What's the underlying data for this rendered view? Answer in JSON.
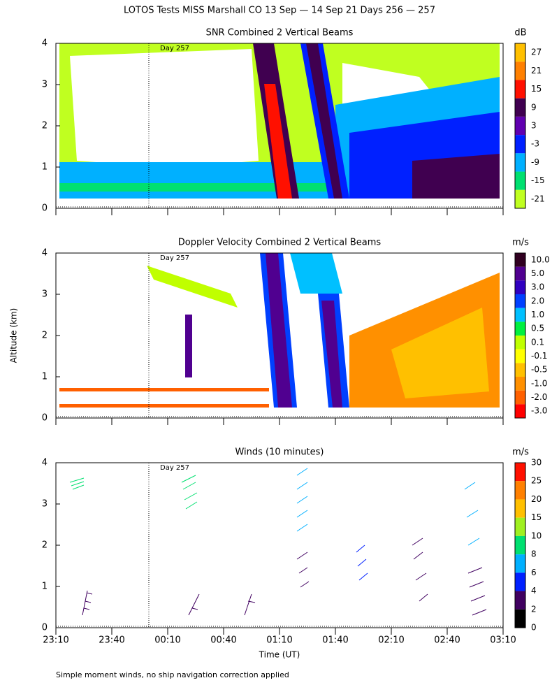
{
  "title": "LOTOS Tests MISS Marshall CO  13 Sep — 14 Sep 21 Days 256 — 257",
  "y_axis_label": "Altitude (km)",
  "x_axis_label": "Time (UT)",
  "x_ticks": [
    "23:10",
    "23:40",
    "00:10",
    "00:40",
    "01:10",
    "01:40",
    "02:10",
    "02:40",
    "03:10"
  ],
  "footnote": "Simple moment winds, no ship navigation correction applied",
  "chart_data": [
    {
      "type": "heatmap",
      "title": "SNR Combined 2 Vertical Beams",
      "annotation": "Day 257",
      "ylim": [
        0,
        4
      ],
      "yticks": [
        0,
        1,
        2,
        3,
        4
      ],
      "colorbar": {
        "label": "dB",
        "ticks": [
          27,
          21,
          15,
          9,
          3,
          -3,
          -9,
          -15,
          -21
        ],
        "colors": [
          "#ffc000",
          "#ff8000",
          "#ff1000",
          "#400050",
          "#6000b0",
          "#0020ff",
          "#00b0ff",
          "#00e070",
          "#c0ff20"
        ]
      }
    },
    {
      "type": "heatmap",
      "title": "Doppler Velocity Combined 2 Vertical Beams",
      "annotation": "Day 257",
      "ylim": [
        0,
        4
      ],
      "yticks": [
        0,
        1,
        2,
        3,
        4
      ],
      "colorbar": {
        "label": "m/s",
        "ticks": [
          {
            "value": 10,
            "label": "10.0"
          },
          {
            "value": 5,
            "label": "5.0"
          },
          {
            "value": 3,
            "label": "3.0"
          },
          {
            "value": 2,
            "label": "2.0"
          },
          {
            "value": 1,
            "label": "1.0"
          },
          0.5,
          0.1,
          -0.1,
          -0.5,
          {
            "value": -1,
            "label": "-1.0"
          },
          {
            "value": -2,
            "label": "-2.0"
          },
          {
            "value": -3,
            "label": "-3.0"
          }
        ],
        "colors": [
          "#300020",
          "#500090",
          "#3000c0",
          "#0040ff",
          "#00c0ff",
          "#00f040",
          "#c0ff00",
          "#ffff00",
          "#ffc000",
          "#ff9000",
          "#ff6000",
          "#ff0000"
        ]
      }
    },
    {
      "type": "barbs",
      "title": "Winds (10 minutes)",
      "annotation": "Day 257",
      "ylim": [
        0,
        4
      ],
      "yticks": [
        0,
        1,
        2,
        3,
        4
      ],
      "colorbar": {
        "label": "m/s",
        "ticks": [
          30,
          25,
          20,
          15,
          10,
          8,
          6,
          4,
          2,
          0
        ],
        "colors": [
          "#ff1000",
          "#ff8000",
          "#ffc000",
          "#a0f020",
          "#00e070",
          "#00b0ff",
          "#0020ff",
          "#400060",
          "#000000"
        ]
      }
    }
  ]
}
